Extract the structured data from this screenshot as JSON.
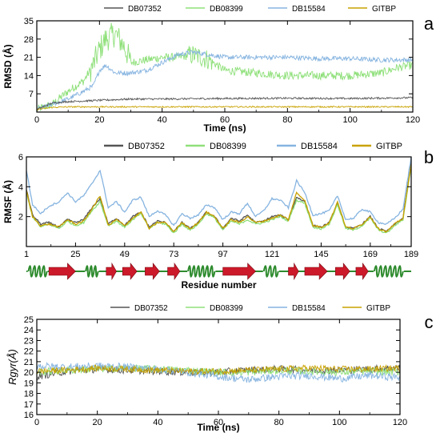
{
  "colors": {
    "DB07352": "#555555",
    "DB08399": "#8fe07a",
    "DB15584": "#86b4e0",
    "GITBP": "#c9a200",
    "helix": "#2e8b2e",
    "strand": "#cc1a2a",
    "loop": "#2e8b2e"
  },
  "chart_data": [
    {
      "panel": "a",
      "type": "line",
      "xlabel": "Time (ns)",
      "ylabel": "RMSD (Å)",
      "xlim": [
        0,
        120
      ],
      "ylim": [
        0,
        35
      ],
      "xticks": [
        0,
        20,
        40,
        60,
        80,
        100,
        120
      ],
      "yticks": [
        7,
        14,
        21,
        28,
        35
      ],
      "legend": [
        "DB07352",
        "DB08399",
        "DB15584",
        "GITBP"
      ],
      "legend_position": "top",
      "series": [
        {
          "name": "DB07352",
          "x": [
            0,
            5,
            10,
            20,
            30,
            40,
            60,
            80,
            100,
            120
          ],
          "y": [
            1,
            3.5,
            4,
            4.5,
            5,
            5,
            5.2,
            5.3,
            5.2,
            5.5
          ]
        },
        {
          "name": "DB08399",
          "x": [
            0,
            5,
            10,
            15,
            18,
            20,
            22,
            25,
            28,
            30,
            35,
            40,
            45,
            50,
            55,
            60,
            70,
            80,
            90,
            100,
            110,
            115,
            120
          ],
          "y": [
            1,
            3,
            8,
            12,
            18,
            24,
            28,
            30,
            25,
            19,
            20,
            21,
            21,
            22,
            20,
            16,
            15,
            14,
            14,
            14,
            15,
            17,
            18
          ]
        },
        {
          "name": "DB15584",
          "x": [
            0,
            5,
            10,
            15,
            18,
            20,
            22,
            25,
            30,
            35,
            40,
            45,
            50,
            55,
            60,
            70,
            80,
            90,
            100,
            110,
            120
          ],
          "y": [
            1,
            3,
            5,
            8,
            10,
            16,
            18,
            15,
            15,
            16,
            19,
            22,
            23,
            22,
            21,
            21,
            21,
            20.5,
            20.5,
            20,
            20
          ]
        },
        {
          "name": "GITBP",
          "x": [
            0,
            5,
            10,
            20,
            40,
            60,
            80,
            100,
            120
          ],
          "y": [
            1,
            1.8,
            2,
            2,
            2,
            2,
            2,
            2,
            2
          ]
        }
      ]
    },
    {
      "panel": "b",
      "type": "line",
      "xlabel": "Residue number",
      "ylabel": "RMSF (Å)",
      "xlim": [
        1,
        189
      ],
      "ylim": [
        0,
        6
      ],
      "xticks": [
        1,
        25,
        49,
        73,
        97,
        121,
        145,
        169,
        189
      ],
      "yticks": [
        2,
        4,
        6
      ],
      "legend": [
        "DB07352",
        "DB08399",
        "DB15584",
        "GITBP"
      ],
      "legend_position": "top",
      "series": [
        {
          "name": "DB07352",
          "x": [
            1,
            4,
            8,
            12,
            17,
            21,
            25,
            29,
            33,
            37,
            41,
            45,
            49,
            53,
            57,
            61,
            65,
            69,
            73,
            77,
            81,
            85,
            89,
            93,
            97,
            101,
            105,
            109,
            113,
            117,
            121,
            125,
            129,
            133,
            137,
            141,
            145,
            149,
            153,
            157,
            161,
            165,
            169,
            173,
            177,
            181,
            185,
            189
          ],
          "y": [
            3.8,
            2.1,
            1.5,
            1.6,
            1.3,
            1.8,
            1.6,
            1.8,
            2.6,
            3.2,
            1.5,
            1.9,
            1.4,
            2.0,
            2.3,
            1.3,
            1.7,
            1.6,
            1.0,
            1.6,
            1.2,
            1.6,
            2.3,
            2.0,
            1.2,
            1.9,
            1.7,
            2.1,
            1.6,
            1.7,
            2.0,
            2.1,
            1.8,
            3.3,
            3.0,
            1.4,
            1.3,
            1.6,
            2.9,
            1.3,
            1.2,
            1.5,
            2.0,
            1.2,
            1.0,
            1.5,
            1.9,
            5.6
          ]
        },
        {
          "name": "DB08399",
          "x": [
            1,
            4,
            8,
            12,
            17,
            21,
            25,
            29,
            33,
            37,
            41,
            45,
            49,
            53,
            57,
            61,
            65,
            69,
            73,
            77,
            81,
            85,
            89,
            93,
            97,
            101,
            105,
            109,
            113,
            117,
            121,
            125,
            129,
            133,
            137,
            141,
            145,
            149,
            153,
            157,
            161,
            165,
            169,
            173,
            177,
            181,
            185,
            189
          ],
          "y": [
            3.6,
            2.0,
            1.3,
            1.5,
            1.2,
            1.7,
            1.4,
            1.6,
            2.4,
            3.0,
            1.4,
            1.7,
            1.3,
            1.8,
            2.2,
            1.2,
            1.6,
            1.5,
            0.9,
            1.5,
            1.1,
            1.5,
            2.2,
            1.9,
            1.1,
            1.7,
            1.5,
            1.8,
            1.5,
            1.6,
            1.8,
            2.0,
            1.7,
            3.1,
            2.9,
            1.3,
            1.2,
            1.5,
            2.8,
            1.2,
            1.1,
            1.4,
            1.9,
            1.1,
            0.9,
            1.4,
            1.8,
            5.4
          ]
        },
        {
          "name": "DB15584",
          "x": [
            1,
            4,
            8,
            12,
            17,
            21,
            25,
            29,
            33,
            37,
            41,
            45,
            49,
            53,
            57,
            61,
            65,
            69,
            73,
            77,
            81,
            85,
            89,
            93,
            97,
            101,
            105,
            109,
            113,
            117,
            121,
            125,
            129,
            133,
            137,
            141,
            145,
            149,
            153,
            157,
            161,
            165,
            169,
            173,
            177,
            181,
            185,
            189
          ],
          "y": [
            5.1,
            2.8,
            2.2,
            2.7,
            3.0,
            3.6,
            3.0,
            3.4,
            4.2,
            5.1,
            2.6,
            3.0,
            2.3,
            3.1,
            3.3,
            2.0,
            2.4,
            2.1,
            1.4,
            2.2,
            1.9,
            2.1,
            2.8,
            2.6,
            1.8,
            2.3,
            2.2,
            2.9,
            2.0,
            2.4,
            3.2,
            3.1,
            2.6,
            4.4,
            3.6,
            2.1,
            2.2,
            2.4,
            3.4,
            1.8,
            1.9,
            2.5,
            2.3,
            1.6,
            1.5,
            1.9,
            2.5,
            6.0
          ]
        },
        {
          "name": "GITBP",
          "x": [
            1,
            4,
            8,
            12,
            17,
            21,
            25,
            29,
            33,
            37,
            41,
            45,
            49,
            53,
            57,
            61,
            65,
            69,
            73,
            77,
            81,
            85,
            89,
            93,
            97,
            101,
            105,
            109,
            113,
            117,
            121,
            125,
            129,
            133,
            137,
            141,
            145,
            149,
            153,
            157,
            161,
            165,
            169,
            173,
            177,
            181,
            185,
            189
          ],
          "y": [
            3.7,
            2.0,
            1.4,
            1.5,
            1.3,
            1.8,
            1.5,
            1.7,
            2.5,
            3.4,
            1.4,
            1.8,
            1.4,
            1.9,
            2.3,
            1.2,
            1.6,
            1.6,
            1.0,
            1.6,
            1.2,
            1.6,
            2.3,
            2.0,
            1.2,
            1.8,
            1.6,
            2.0,
            1.6,
            1.7,
            1.9,
            2.1,
            1.8,
            3.6,
            3.1,
            1.4,
            1.3,
            1.6,
            3.0,
            1.3,
            1.2,
            1.5,
            2.0,
            1.2,
            1.0,
            1.5,
            1.9,
            5.5
          ]
        }
      ],
      "secondary_structure": [
        {
          "type": "helix",
          "start": 2,
          "end": 11
        },
        {
          "type": "strand",
          "start": 12,
          "end": 25
        },
        {
          "type": "helix",
          "start": 30,
          "end": 36
        },
        {
          "type": "strand",
          "start": 40,
          "end": 45
        },
        {
          "type": "strand",
          "start": 48,
          "end": 55
        },
        {
          "type": "strand",
          "start": 59,
          "end": 66
        },
        {
          "type": "strand",
          "start": 70,
          "end": 76
        },
        {
          "type": "helix",
          "start": 80,
          "end": 93
        },
        {
          "type": "strand",
          "start": 97,
          "end": 113
        },
        {
          "type": "helix",
          "start": 117,
          "end": 124
        },
        {
          "type": "strand",
          "start": 129,
          "end": 134
        },
        {
          "type": "strand",
          "start": 137,
          "end": 148
        },
        {
          "type": "strand",
          "start": 152,
          "end": 159
        },
        {
          "type": "strand",
          "start": 162,
          "end": 168
        },
        {
          "type": "helix",
          "start": 171,
          "end": 185
        }
      ]
    },
    {
      "panel": "c",
      "type": "line",
      "xlabel": "Time (ns)",
      "ylabel": "Rgyr(Å)",
      "xlim": [
        0,
        120
      ],
      "ylim": [
        16,
        25
      ],
      "xticks": [
        0,
        20,
        40,
        60,
        80,
        100,
        120
      ],
      "yticks": [
        16,
        17,
        18,
        19,
        20,
        21,
        22,
        23,
        24,
        25
      ],
      "legend": [
        "DB07352",
        "DB08399",
        "DB15584",
        "GITBP"
      ],
      "legend_position": "top",
      "series": [
        {
          "name": "DB07352",
          "x": [
            0,
            10,
            20,
            30,
            40,
            50,
            60,
            70,
            80,
            90,
            100,
            110,
            120
          ],
          "y": [
            19.6,
            20.1,
            20.3,
            20.2,
            20.1,
            20.0,
            20.0,
            20.2,
            20.3,
            20.2,
            20.2,
            20.3,
            20.4
          ]
        },
        {
          "name": "DB08399",
          "x": [
            0,
            10,
            20,
            30,
            40,
            50,
            60,
            70,
            80,
            90,
            100,
            110,
            120
          ],
          "y": [
            20.0,
            20.2,
            20.3,
            20.4,
            20.3,
            20.2,
            20.0,
            20.0,
            20.2,
            20.1,
            20.0,
            20.1,
            20.0
          ]
        },
        {
          "name": "DB15584",
          "x": [
            0,
            10,
            20,
            30,
            40,
            50,
            60,
            70,
            80,
            90,
            100,
            110,
            120
          ],
          "y": [
            20.6,
            20.5,
            20.6,
            20.5,
            20.3,
            20.0,
            19.6,
            19.3,
            19.6,
            19.7,
            19.4,
            19.7,
            19.5
          ]
        },
        {
          "name": "GITBP",
          "x": [
            0,
            10,
            20,
            30,
            40,
            50,
            60,
            70,
            80,
            90,
            100,
            110,
            120
          ],
          "y": [
            20.1,
            20.2,
            20.4,
            20.3,
            20.2,
            20.1,
            20.1,
            20.2,
            20.3,
            20.4,
            20.3,
            20.3,
            20.4
          ]
        }
      ]
    }
  ]
}
